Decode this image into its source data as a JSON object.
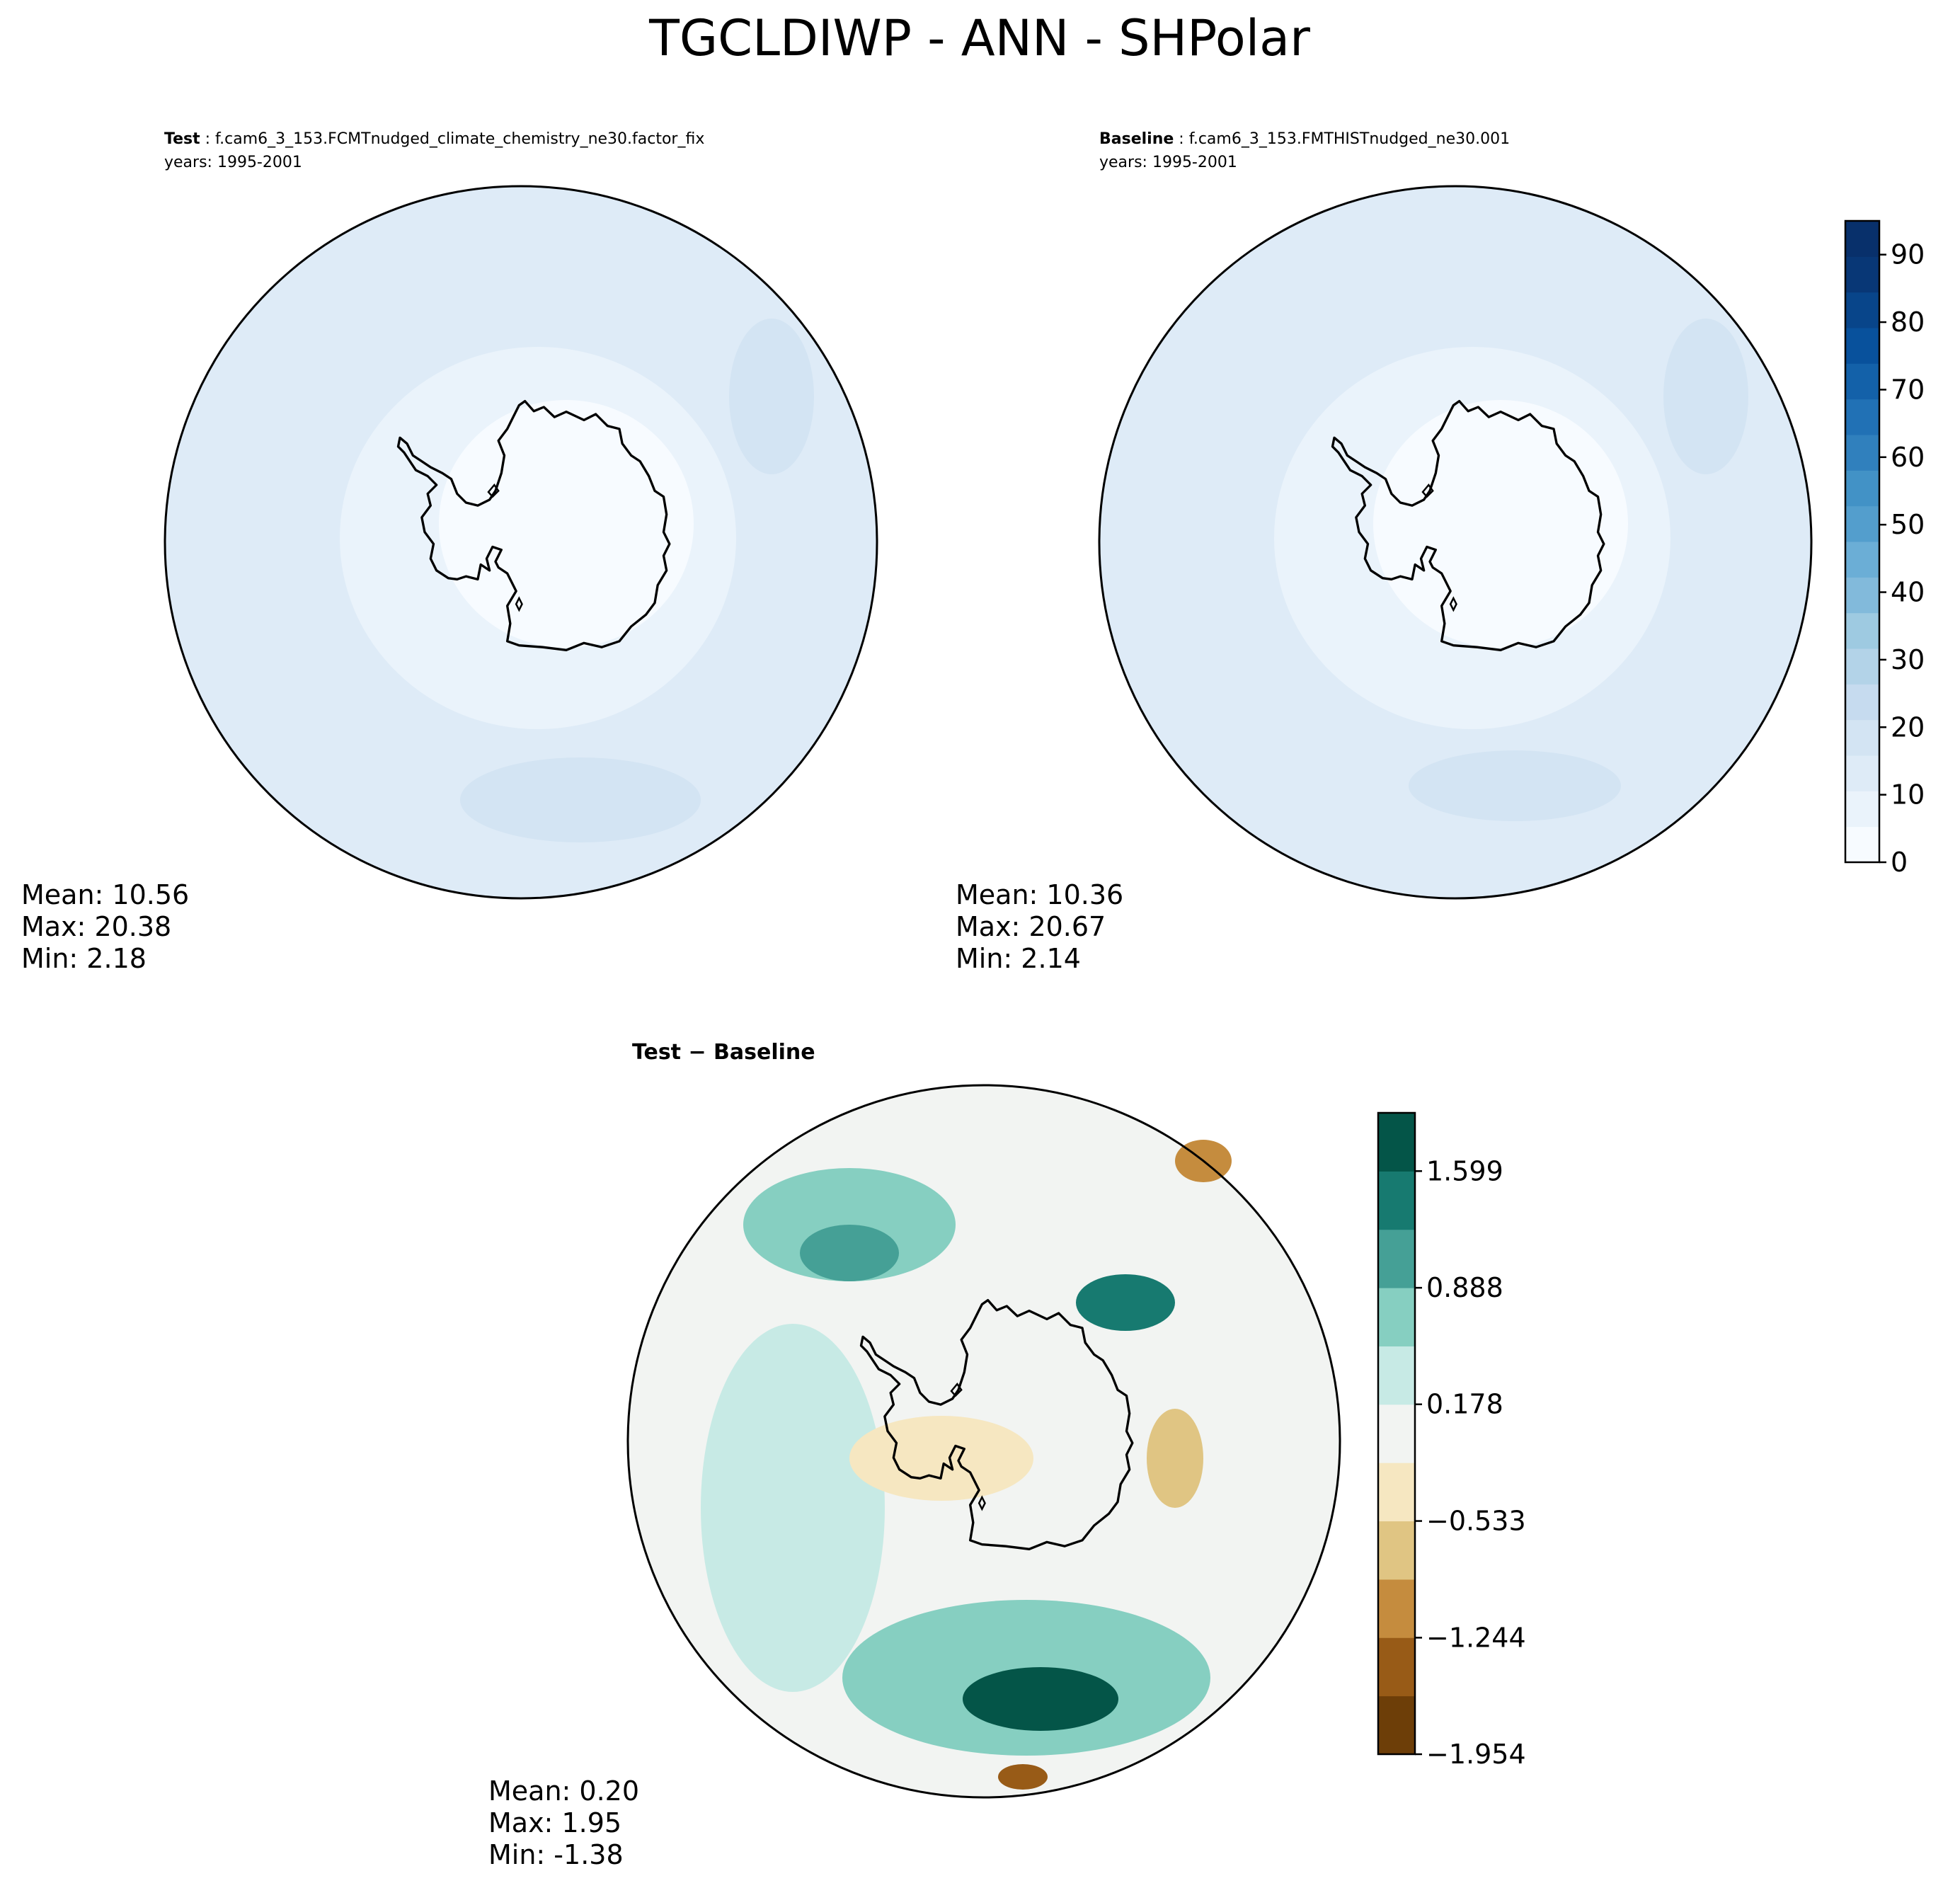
{
  "figure": {
    "title": "TGCLDIWP - ANN - SHPolar"
  },
  "colors": {
    "blues": [
      "#f7fbff",
      "#eaf3fb",
      "#deebf7",
      "#d3e4f3",
      "#c6dbef",
      "#b3d3e8",
      "#9ecae1",
      "#82badb",
      "#6baed6",
      "#539ecd",
      "#4292c6",
      "#3080bd",
      "#2171b5",
      "#1361a9",
      "#08519c",
      "#08458a",
      "#083776",
      "#08306b"
    ],
    "brbg": [
      "#6d3e08",
      "#985b17",
      "#c58c3e",
      "#e0c583",
      "#f6e7c1",
      "#f2f4f2",
      "#c7eae5",
      "#86cfc1",
      "#45a096",
      "#177a70",
      "#045548"
    ],
    "coast": "#000000"
  },
  "chart_data": [
    {
      "id": "test",
      "type": "heatmap",
      "projection": "south-polar-stereographic",
      "label_bold": "Test",
      "label_rest": " : f.cam6_3_153.FCMTnudged_climate_chemistry_ne30.factor_fix",
      "years": "years: 1995-2001",
      "stats": [
        "Mean: 10.56",
        "Max: 20.38",
        "Min:  2.18"
      ],
      "mean": 10.56,
      "max": 20.38,
      "min": 2.18
    },
    {
      "id": "baseline",
      "type": "heatmap",
      "projection": "south-polar-stereographic",
      "label_bold": "Baseline",
      "label_rest": " : f.cam6_3_153.FMTHISTnudged_ne30.001",
      "years": "years: 1995-2001",
      "stats": [
        "Mean: 10.36",
        "Max: 20.67",
        "Min:  2.14"
      ],
      "mean": 10.36,
      "max": 20.67,
      "min": 2.14,
      "colorbar": {
        "vmin": 0,
        "vmax": 95,
        "levels": 19,
        "ticks": [
          0,
          10,
          20,
          30,
          40,
          50,
          60,
          70,
          80,
          90
        ],
        "tick_labels": [
          "0",
          "10",
          "20",
          "30",
          "40",
          "50",
          "60",
          "70",
          "80",
          "90"
        ]
      }
    },
    {
      "id": "diff",
      "type": "heatmap",
      "projection": "south-polar-stereographic",
      "title": "Test − Baseline",
      "stats": [
        "Mean:  0.20",
        "Max:  1.95",
        "Min: -1.38"
      ],
      "mean": 0.2,
      "max": 1.95,
      "min": -1.38,
      "colorbar": {
        "vmin": -1.954,
        "vmax": 1.954,
        "levels": 11,
        "ticks": [
          1.599,
          0.888,
          0.178,
          -0.533,
          -1.244,
          -1.954
        ],
        "tick_labels": [
          "1.599",
          "0.888",
          "0.178",
          "−0.533",
          "−1.244",
          "−1.954"
        ]
      }
    }
  ]
}
